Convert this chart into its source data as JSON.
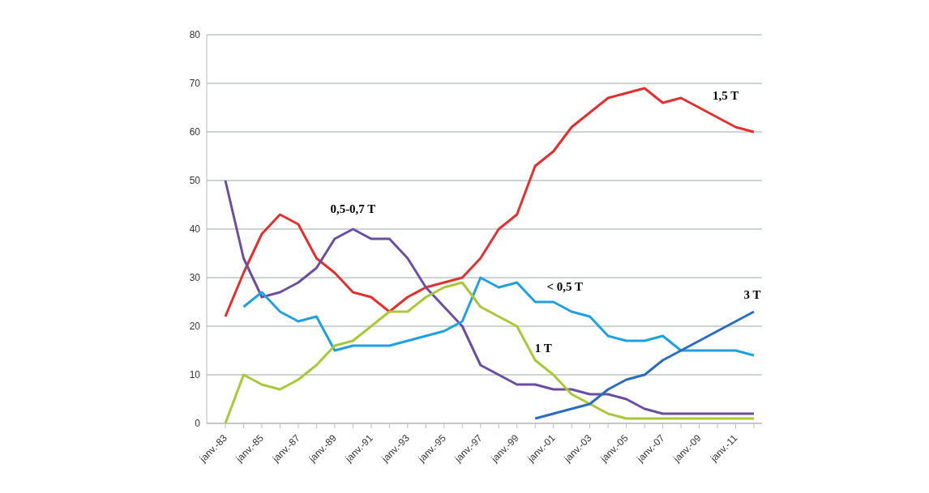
{
  "chart_data": {
    "type": "line",
    "categories": [
      "janv.-83",
      null,
      "janv.-85",
      null,
      "janv.-87",
      null,
      "janv.-89",
      null,
      "janv.-91",
      null,
      "janv.-93",
      null,
      "janv.-95",
      null,
      "janv.-97",
      null,
      "janv.-99",
      null,
      "janv.-01",
      null,
      "janv.-03",
      null,
      "janv.-05",
      null,
      "janv.-07",
      null,
      "janv.-09",
      null,
      "janv.-11",
      null
    ],
    "series": [
      {
        "name": "1,5 T",
        "color": "#e03030",
        "values": [
          22,
          31,
          39,
          43,
          41,
          34,
          31,
          27,
          26,
          23,
          26,
          28,
          29,
          30,
          34,
          40,
          43,
          53,
          56,
          61,
          64,
          67,
          68,
          69,
          66,
          67,
          65,
          63,
          61,
          60
        ]
      },
      {
        "name": "0,5-0,7 T",
        "color": "#6a4fa0",
        "values": [
          50,
          34,
          26,
          27,
          29,
          32,
          38,
          40,
          38,
          38,
          34,
          28,
          24,
          20,
          12,
          10,
          8,
          8,
          7,
          7,
          6,
          6,
          5,
          3,
          2,
          2,
          2,
          2,
          2,
          2
        ]
      },
      {
        "name": "< 0,5 T",
        "color": "#1fa0e0",
        "values": [
          null,
          24,
          27,
          23,
          21,
          22,
          15,
          16,
          16,
          16,
          17,
          18,
          19,
          21,
          30,
          28,
          29,
          25,
          25,
          23,
          22,
          18,
          17,
          17,
          18,
          15,
          15,
          15,
          15,
          14
        ]
      },
      {
        "name": "1 T",
        "color": "#a8c83a",
        "values": [
          0,
          10,
          8,
          7,
          9,
          12,
          16,
          17,
          20,
          23,
          23,
          26,
          28,
          29,
          24,
          22,
          20,
          13,
          10,
          6,
          4,
          2,
          1,
          1,
          1,
          1,
          1,
          1,
          1,
          1
        ]
      },
      {
        "name": "3 T",
        "color": "#2a6cc0",
        "values": [
          null,
          null,
          null,
          null,
          null,
          null,
          null,
          null,
          null,
          null,
          null,
          null,
          null,
          null,
          null,
          null,
          null,
          1,
          2,
          3,
          4,
          7,
          9,
          10,
          13,
          15,
          17,
          19,
          21,
          23
        ]
      }
    ],
    "ylim": [
      0,
      80
    ],
    "yticks": [
      0,
      10,
      20,
      30,
      40,
      50,
      60,
      70,
      80
    ],
    "grid": "y",
    "marker": "none",
    "line_style": "solid",
    "legend": false
  }
}
